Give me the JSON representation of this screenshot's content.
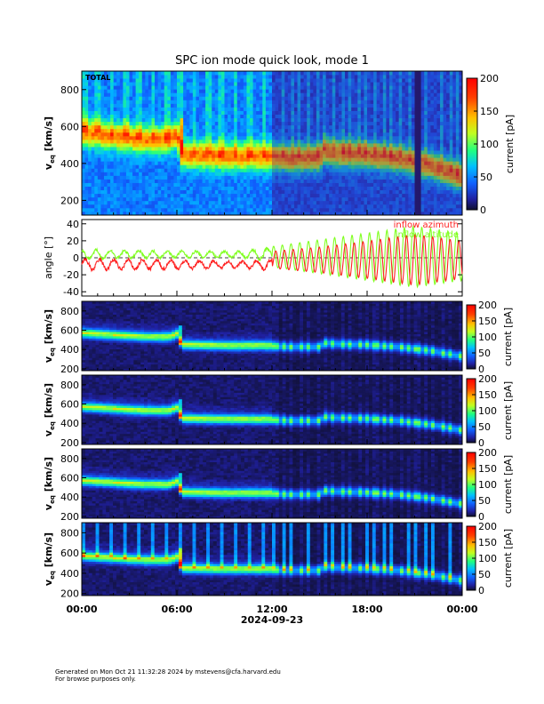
{
  "figure": {
    "title": "SPC ion mode quick look, mode 1",
    "date_label": "2024-09-23",
    "x_ticks": [
      "00:00",
      "06:00",
      "12:00",
      "18:00",
      "00:00"
    ]
  },
  "footer": {
    "line1": "Generated on Mon Oct 21 11:32:28 2024 by mstevens@cfa.harvard.edu",
    "line2": "For browse purposes only."
  },
  "colors": {
    "azimuth": "#ff2020",
    "altitude": "#80ff20"
  },
  "chart_data": [
    {
      "type": "heatmap",
      "panel": "total",
      "label": "TOTAL",
      "ylabel": "v_eq [km/s]",
      "ylim": [
        120,
        900
      ],
      "yticks": [
        200,
        400,
        600,
        800
      ],
      "xlim": [
        0,
        24
      ],
      "colorbar": {
        "label": "current [pA]",
        "ticks": [
          0,
          50,
          100,
          150,
          200
        ],
        "colormap": "rainbow"
      },
      "speed_track": [
        [
          0,
          570
        ],
        [
          2,
          550
        ],
        [
          4,
          530
        ],
        [
          5.5,
          530
        ],
        [
          6,
          560
        ],
        [
          6.3,
          450
        ],
        [
          9,
          440
        ],
        [
          12,
          440
        ],
        [
          13,
          430
        ],
        [
          15,
          430
        ],
        [
          15.3,
          470
        ],
        [
          16,
          460
        ],
        [
          18,
          450
        ],
        [
          20,
          430
        ],
        [
          22,
          390
        ],
        [
          24,
          330
        ]
      ]
    },
    {
      "type": "line",
      "panel": "angle",
      "ylabel": "angle [°]",
      "ylim": [
        -45,
        45
      ],
      "yticks": [
        -40,
        -20,
        0,
        20,
        40
      ],
      "xlim": [
        0,
        24
      ],
      "series": [
        {
          "name": "inflow azimuth",
          "color": "#ff2020",
          "amplitude_profile": [
            [
              0,
              10
            ],
            [
              6,
              8
            ],
            [
              10,
              6
            ],
            [
              12,
              10
            ],
            [
              15,
              15
            ],
            [
              18,
              22
            ],
            [
              21,
              30
            ],
            [
              24,
              22
            ]
          ],
          "mean": -8
        },
        {
          "name": "inflow altitude",
          "color": "#80ff20",
          "amplitude_profile": [
            [
              0,
              8
            ],
            [
              6,
              6
            ],
            [
              10,
              6
            ],
            [
              12,
              12
            ],
            [
              15,
              20
            ],
            [
              18,
              28
            ],
            [
              21,
              36
            ],
            [
              24,
              28
            ]
          ],
          "mean": 4
        }
      ]
    },
    {
      "type": "heatmap",
      "panel": "channel-a",
      "label": "",
      "ylabel": "v_eq [km/s]",
      "ylim": [
        180,
        900
      ],
      "yticks": [
        200,
        400,
        600,
        800
      ],
      "colorbar": {
        "label": "current [pA]",
        "ticks": [
          0,
          50,
          100,
          150,
          200
        ],
        "colormap": "rainbow"
      }
    },
    {
      "type": "heatmap",
      "panel": "channel-b",
      "label": "",
      "ylabel": "v_eq [km/s]",
      "ylim": [
        180,
        900
      ],
      "yticks": [
        200,
        400,
        600,
        800
      ],
      "colorbar": {
        "label": "current [pA]",
        "ticks": [
          0,
          50,
          100,
          150,
          200
        ],
        "colormap": "rainbow"
      }
    },
    {
      "type": "heatmap",
      "panel": "channel-c",
      "label": "",
      "ylabel": "v_eq [km/s]",
      "ylim": [
        180,
        900
      ],
      "yticks": [
        200,
        400,
        600,
        800
      ],
      "colorbar": {
        "label": "current [pA]",
        "ticks": [
          0,
          50,
          100,
          150,
          200
        ],
        "colormap": "rainbow"
      }
    },
    {
      "type": "heatmap",
      "panel": "channel-d",
      "label": "",
      "ylabel": "v_eq [km/s]",
      "ylim": [
        180,
        900
      ],
      "yticks": [
        200,
        400,
        600,
        800
      ],
      "colorbar": {
        "label": "current [pA]",
        "ticks": [
          0,
          50,
          100,
          150,
          200
        ],
        "colormap": "rainbow"
      }
    }
  ]
}
